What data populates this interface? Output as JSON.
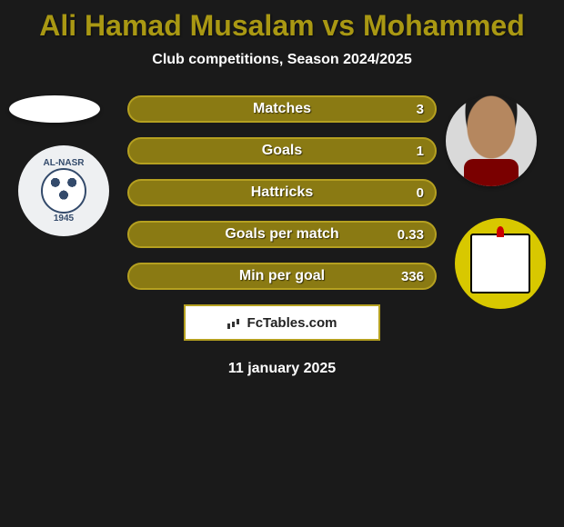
{
  "title": {
    "text": "Ali Hamad Musalam vs Mohammed",
    "color": "#a99813"
  },
  "subtitle": "Club competitions, Season 2024/2025",
  "stats": [
    {
      "label": "Matches",
      "value": "3"
    },
    {
      "label": "Goals",
      "value": "1"
    },
    {
      "label": "Hattricks",
      "value": "0"
    },
    {
      "label": "Goals per match",
      "value": "0.33"
    },
    {
      "label": "Min per goal",
      "value": "336"
    }
  ],
  "club_left": {
    "name": "AL-NASR",
    "year": "1945"
  },
  "watermark": {
    "text": "FcTables.com"
  },
  "date": "11 january 2025",
  "colors": {
    "bar_fill": "#8a7a13",
    "bar_border": "#b5a020",
    "background": "#1a1a1a"
  }
}
